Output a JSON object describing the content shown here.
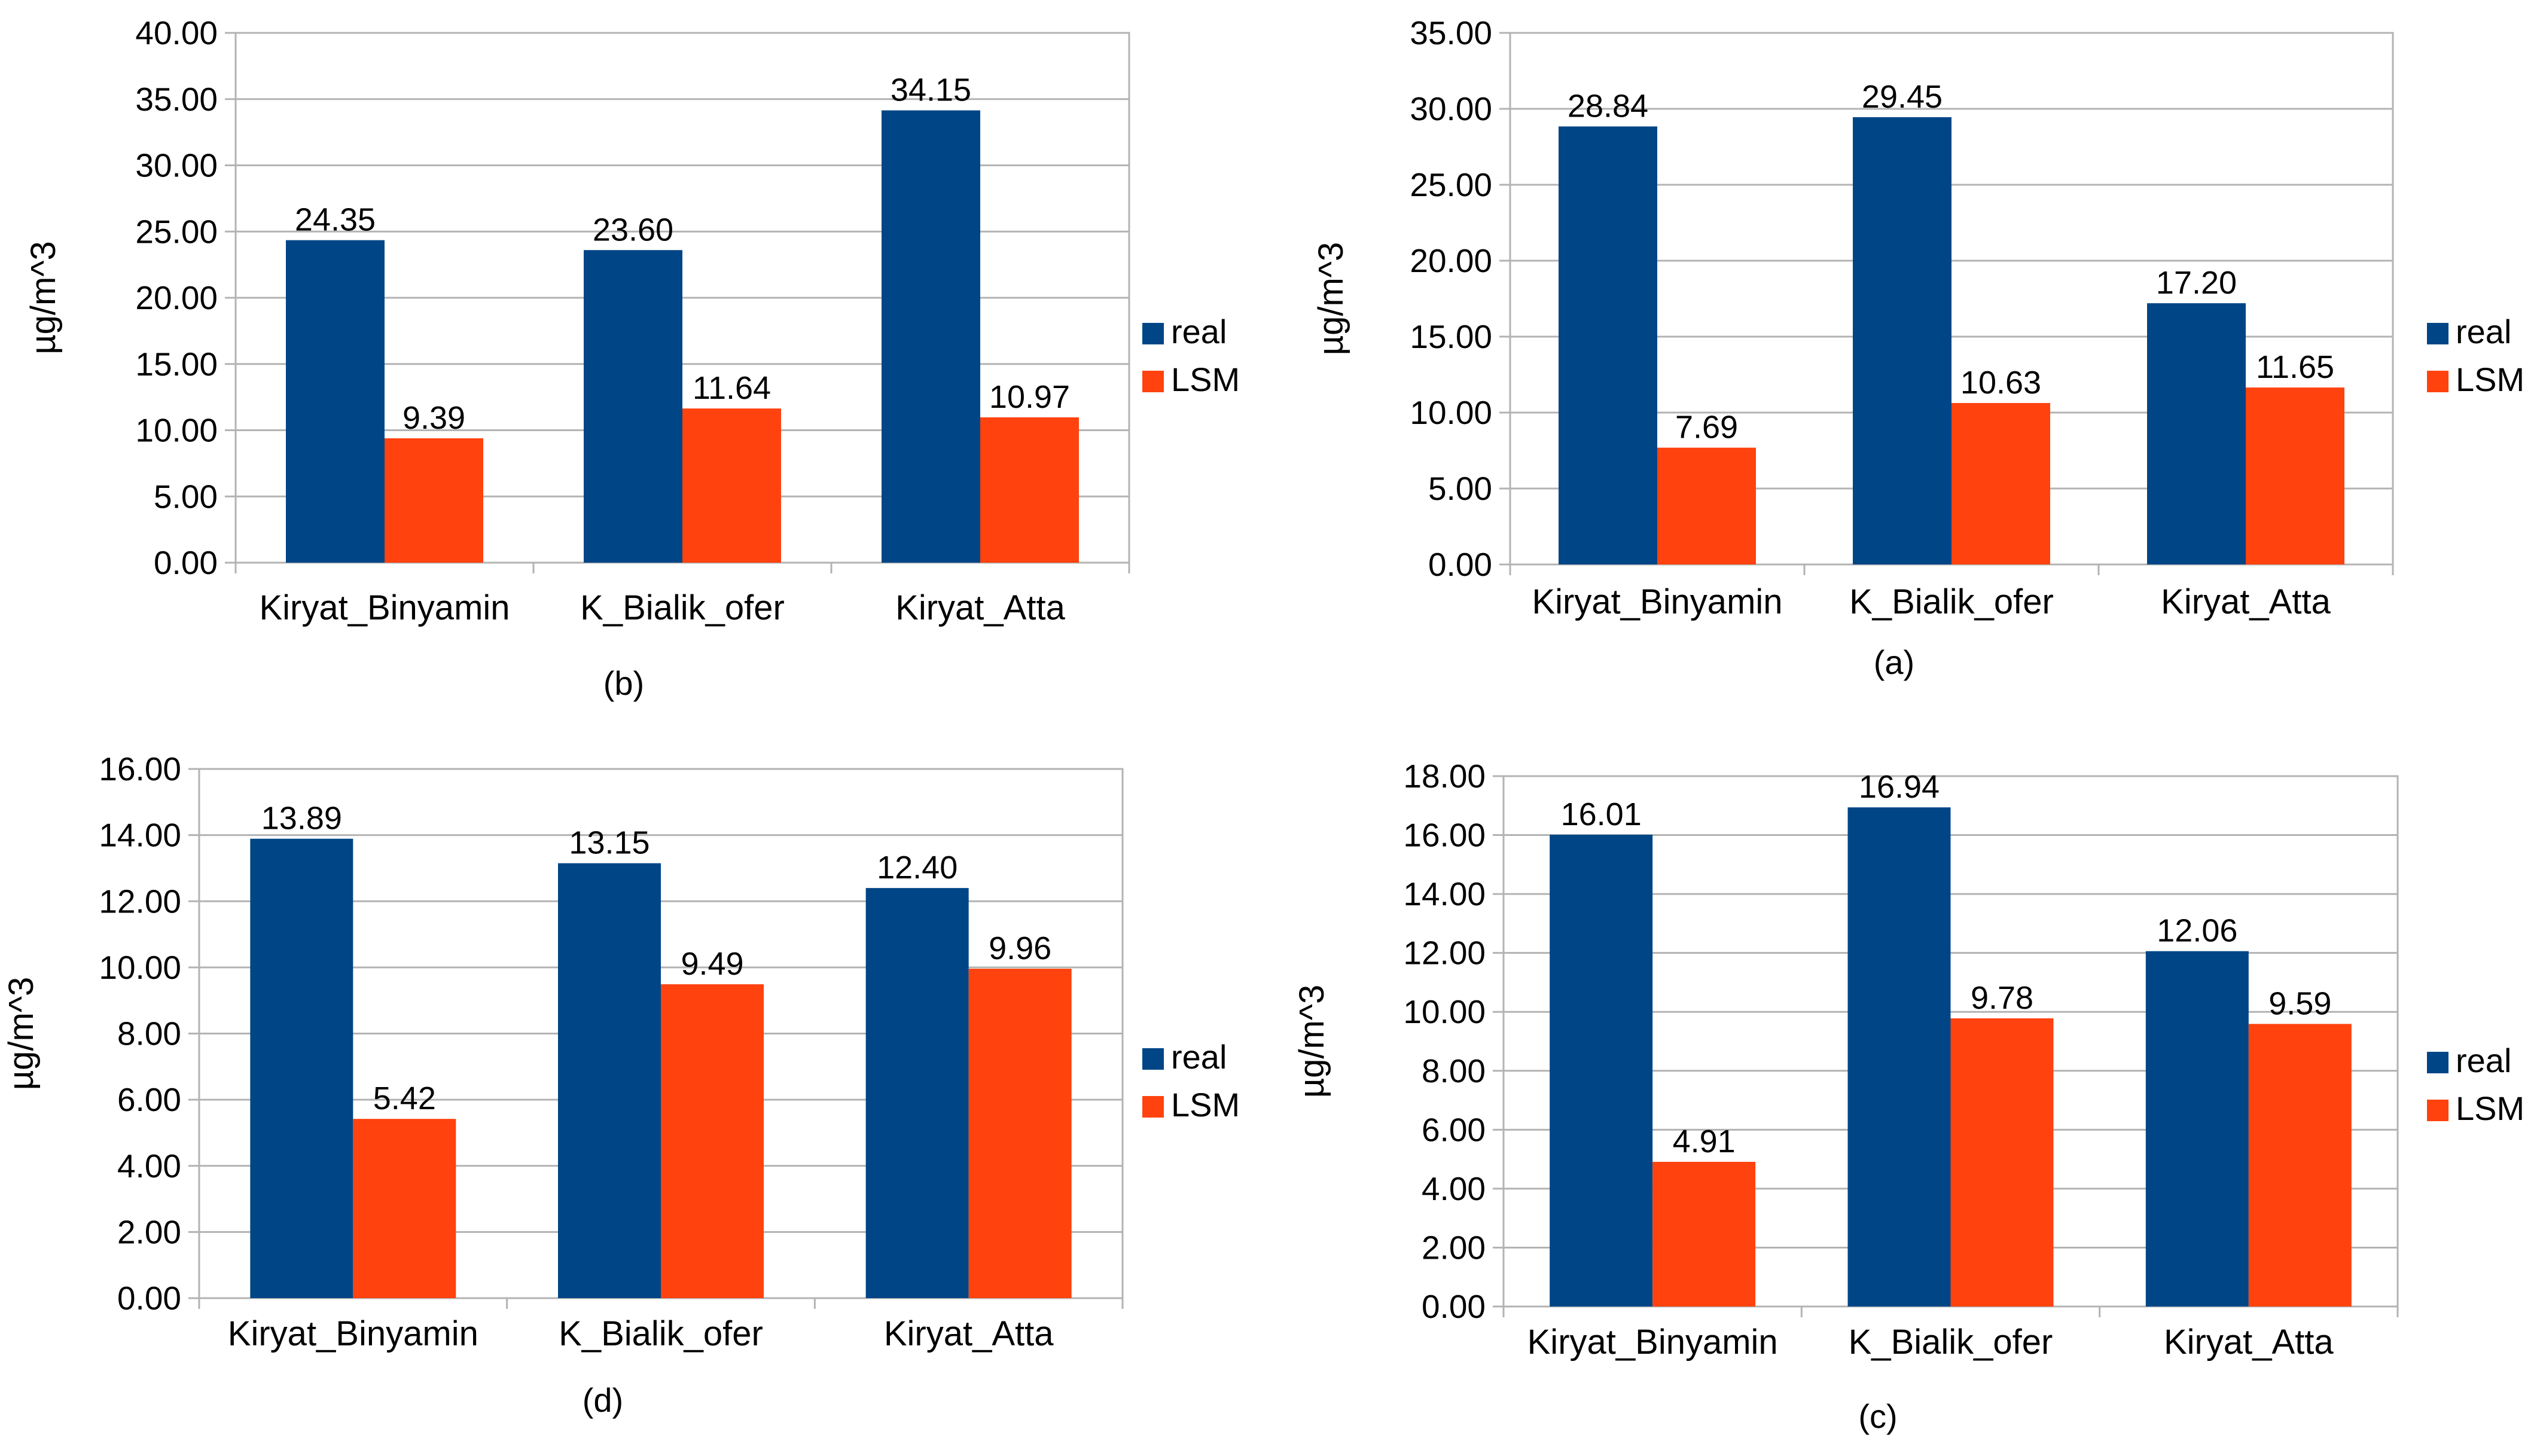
{
  "chart_data": [
    {
      "type": "bar",
      "panel_label": "(b)",
      "ylabel": "µg/m^3",
      "ylim": [
        0,
        40
      ],
      "tick_step": 5,
      "y_ticks": [
        "0.00",
        "5.00",
        "10.00",
        "15.00",
        "20.00",
        "25.00",
        "30.00",
        "35.00",
        "40.00"
      ],
      "categories": [
        "Kiryat_Binyamin",
        "K_Bialik_ofer",
        "Kiryat_Atta"
      ],
      "series": [
        {
          "name": "real",
          "color": "#004586",
          "values": [
            24.35,
            23.6,
            34.15
          ],
          "labels": [
            "24.35",
            "23.60",
            "34.15"
          ]
        },
        {
          "name": "LSM",
          "color": "#ff420e",
          "values": [
            9.39,
            11.64,
            10.97
          ],
          "labels": [
            "9.39",
            "11.64",
            "10.97"
          ]
        }
      ],
      "legend_position": "right"
    },
    {
      "type": "bar",
      "panel_label": "(a)",
      "ylabel": "µg/m^3",
      "ylim": [
        0,
        35
      ],
      "tick_step": 5,
      "y_ticks": [
        "0.00",
        "5.00",
        "10.00",
        "15.00",
        "20.00",
        "25.00",
        "30.00",
        "35.00"
      ],
      "categories": [
        "Kiryat_Binyamin",
        "K_Bialik_ofer",
        "Kiryat_Atta"
      ],
      "series": [
        {
          "name": "real",
          "color": "#004586",
          "values": [
            28.84,
            29.45,
            17.2
          ],
          "labels": [
            "28.84",
            "29.45",
            "17.20"
          ]
        },
        {
          "name": "LSM",
          "color": "#ff420e",
          "values": [
            7.69,
            10.63,
            11.65
          ],
          "labels": [
            "7.69",
            "10.63",
            "11.65"
          ]
        }
      ],
      "legend_position": "right"
    },
    {
      "type": "bar",
      "panel_label": "(d)",
      "ylabel": "µg/m^3",
      "ylim": [
        0,
        16
      ],
      "tick_step": 2,
      "y_ticks": [
        "0.00",
        "2.00",
        "4.00",
        "6.00",
        "8.00",
        "10.00",
        "12.00",
        "14.00",
        "16.00"
      ],
      "categories": [
        "Kiryat_Binyamin",
        "K_Bialik_ofer",
        "Kiryat_Atta"
      ],
      "series": [
        {
          "name": "real",
          "color": "#004586",
          "values": [
            13.89,
            13.15,
            12.4
          ],
          "labels": [
            "13.89",
            "13.15",
            "12.40"
          ]
        },
        {
          "name": "LSM",
          "color": "#ff420e",
          "values": [
            5.42,
            9.49,
            9.96
          ],
          "labels": [
            "5.42",
            "9.49",
            "9.96"
          ]
        }
      ],
      "legend_position": "right"
    },
    {
      "type": "bar",
      "panel_label": "(c)",
      "ylabel": "µg/m^3",
      "ylim": [
        0,
        18
      ],
      "tick_step": 2,
      "y_ticks": [
        "0.00",
        "2.00",
        "4.00",
        "6.00",
        "8.00",
        "10.00",
        "12.00",
        "14.00",
        "16.00",
        "18.00"
      ],
      "categories": [
        "Kiryat_Binyamin",
        "K_Bialik_ofer",
        "Kiryat_Atta"
      ],
      "series": [
        {
          "name": "real",
          "color": "#004586",
          "values": [
            16.01,
            16.94,
            12.06
          ],
          "labels": [
            "16.01",
            "16.94",
            "12.06"
          ]
        },
        {
          "name": "LSM",
          "color": "#ff420e",
          "values": [
            4.91,
            9.78,
            9.59
          ],
          "labels": [
            "4.91",
            "9.78",
            "9.59"
          ]
        }
      ],
      "legend_position": "right"
    }
  ]
}
